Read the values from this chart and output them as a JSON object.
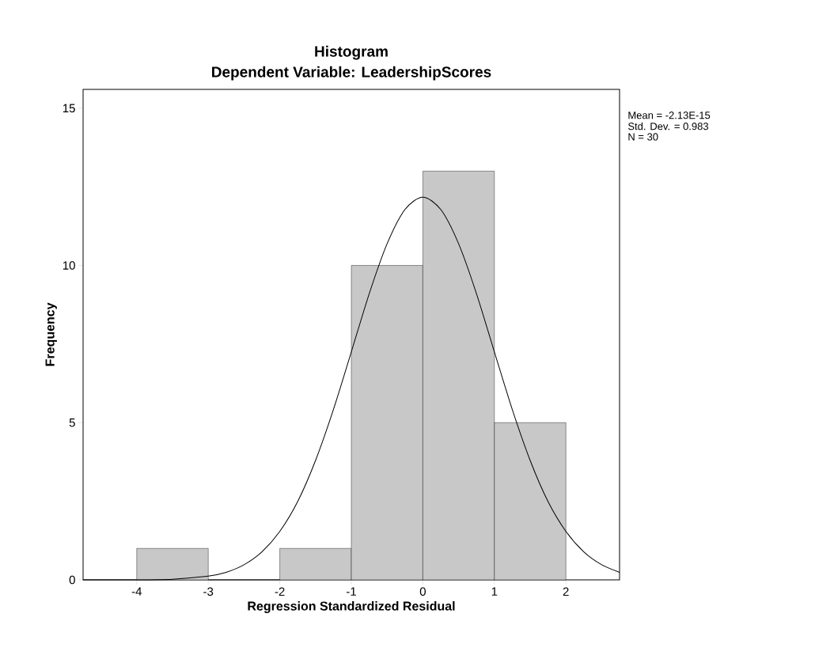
{
  "chart_data": {
    "type": "histogram",
    "title": "Histogram",
    "subtitle": "Dependent Variable: LeadershipScores",
    "xlabel": "Regression Standardized Residual",
    "ylabel": "Frequency",
    "bins": [
      -4,
      -3,
      -2,
      -1,
      0,
      1,
      2
    ],
    "values": [
      1,
      0,
      1,
      10,
      13,
      5
    ],
    "color": "#c8c8c8",
    "series": [
      {
        "type": "line",
        "color": "#000000",
        "x": [
          -4.75,
          -4.5,
          -4,
          -3.5,
          -3,
          -2.75,
          -2.5,
          -2.25,
          -2,
          -1.75,
          -1.5,
          -1.25,
          -1,
          -0.75,
          -0.5,
          -0.25,
          0,
          0.25,
          0.5,
          0.75,
          1,
          1.25,
          1.5,
          1.75,
          2,
          2.25,
          2.5,
          2.75
        ],
        "values": [
          0,
          0,
          0,
          0.02,
          0.12,
          0.24,
          0.48,
          0.89,
          1.54,
          2.49,
          3.8,
          5.42,
          7.25,
          9.1,
          10.69,
          11.78,
          12.17,
          11.78,
          10.69,
          9.1,
          7.25,
          5.42,
          3.8,
          2.49,
          1.54,
          0.89,
          0.48,
          0.24
        ]
      }
    ],
    "xlim": [
      -4.75,
      2.75
    ],
    "ylim": [
      0,
      15.6
    ],
    "xticks": [
      -4,
      -3,
      -2,
      -1,
      0,
      1,
      2
    ],
    "yticks": [
      0,
      5,
      10,
      15
    ],
    "annotations": [
      "Mean = -2.13E-15",
      "Std. Dev. = 0.983",
      "N = 30"
    ],
    "grid": false
  }
}
